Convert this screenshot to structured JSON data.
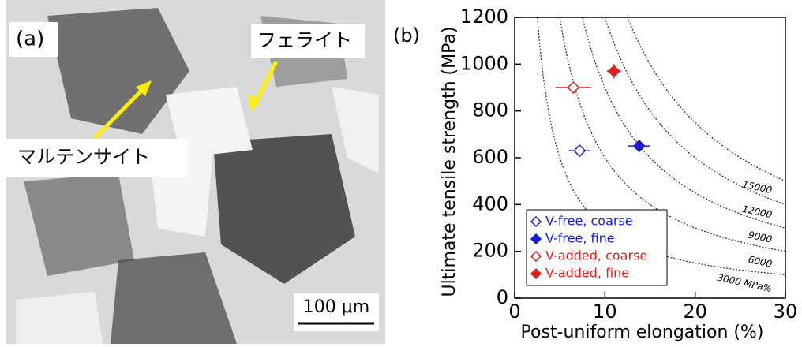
{
  "panel_a": {
    "label": "(a)",
    "annotations": [
      "フェライト",
      "マルテンサイト"
    ],
    "scale_bar": "100 μm"
  },
  "chart_data": {
    "type": "scatter",
    "panel_label": "(b)",
    "x_label": "Post-uniform elongation (%)",
    "y_label": "Ultimate tensile strength (MPa)",
    "xlim": [
      0,
      30
    ],
    "ylim": [
      0,
      1200
    ],
    "xticks": [
      0,
      10,
      20,
      30
    ],
    "yticks": [
      0,
      200,
      400,
      600,
      800,
      1000,
      1200
    ],
    "iso_lines": [
      {
        "value": 3000,
        "label": "3000 MPa%"
      },
      6000,
      9000,
      12000,
      15000
    ],
    "legend": "lower left",
    "series": [
      {
        "name": "V-free, coarse",
        "color": "#1a1adc",
        "marker": "open",
        "x": [
          7.2
        ],
        "y": [
          630
        ],
        "xerr": [
          1.2
        ]
      },
      {
        "name": "V-free, fine",
        "color": "#1a1adc",
        "marker": "filled",
        "x": [
          13.8
        ],
        "y": [
          650
        ],
        "xerr": [
          1.2
        ]
      },
      {
        "name": "V-added, coarse",
        "color": "#e02020",
        "marker": "open",
        "x": [
          6.5
        ],
        "y": [
          900
        ],
        "xerr": [
          2.0
        ],
        "yerr": [
          20
        ]
      },
      {
        "name": "V-added, fine",
        "color": "#e02020",
        "marker": "filled",
        "x": [
          11.0
        ],
        "y": [
          970
        ],
        "xerr": [
          0.8
        ],
        "yerr": [
          30
        ]
      }
    ]
  }
}
